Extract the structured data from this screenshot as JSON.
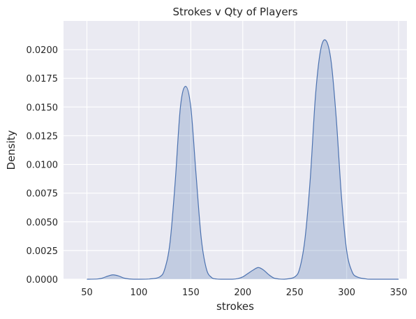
{
  "chart_data": {
    "type": "area",
    "title": "Strokes v Qty of Players",
    "xlabel": "strokes",
    "ylabel": "Density",
    "xlim": [
      27.5,
      358
    ],
    "ylim": [
      0,
      0.0225
    ],
    "x_ticks": [
      "50",
      "100",
      "150",
      "200",
      "250",
      "300",
      "350"
    ],
    "y_ticks": [
      "0.0000",
      "0.0025",
      "0.0050",
      "0.0075",
      "0.0100",
      "0.0125",
      "0.0150",
      "0.0175",
      "0.0200"
    ],
    "grid": true,
    "style": "seaborn darkgrid, KDE plot with filled area",
    "colors": {
      "background": "#eaeaf2",
      "grid": "#ffffff",
      "line": "#4c72b0",
      "fill": "#4c72b0"
    },
    "series": [
      {
        "x": [
          50,
          60,
          65,
          70,
          75,
          80,
          85,
          90,
          95,
          100,
          110,
          120,
          125,
          130,
          135,
          140,
          145,
          150,
          155,
          160,
          165,
          170,
          175,
          180,
          190,
          195,
          200,
          205,
          210,
          215,
          220,
          225,
          230,
          235,
          240,
          250,
          255,
          260,
          265,
          270,
          275,
          280,
          285,
          290,
          295,
          300,
          305,
          310,
          320,
          330,
          340,
          350
        ],
        "values": [
          0.0,
          2e-05,
          0.0001,
          0.00027,
          0.00038,
          0.0003,
          0.00012,
          3e-05,
          0.0,
          0.0,
          2e-05,
          0.0002,
          0.0009,
          0.0032,
          0.0085,
          0.015,
          0.0168,
          0.015,
          0.0092,
          0.0036,
          0.0009,
          0.00015,
          2e-05,
          0.0,
          0.0,
          5e-05,
          0.0002,
          0.0005,
          0.0008,
          0.00102,
          0.0008,
          0.0004,
          0.0001,
          2e-05,
          0.0,
          0.0002,
          0.001,
          0.0036,
          0.0088,
          0.016,
          0.02,
          0.0208,
          0.019,
          0.014,
          0.0072,
          0.0025,
          0.0007,
          0.0002,
          1e-05,
          0.0,
          0.0,
          0.0
        ]
      }
    ]
  }
}
